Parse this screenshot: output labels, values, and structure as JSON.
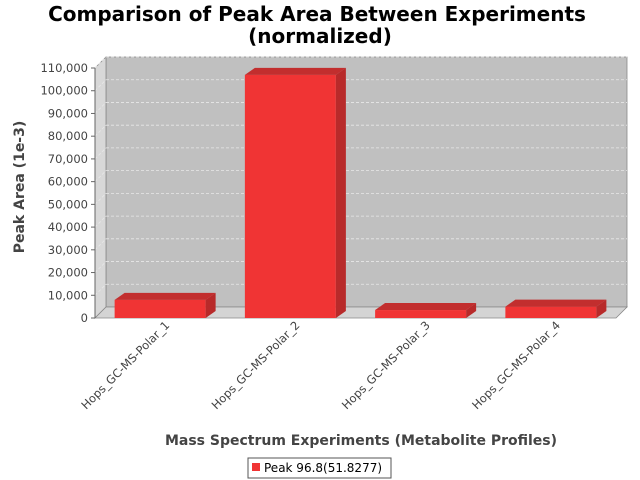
{
  "chart_data": {
    "type": "bar",
    "title_line1": "Comparison of Peak Area Between Experiments",
    "title_line2": "(normalized)",
    "xlabel": "Mass Spectrum Experiments (Metabolite Profiles)",
    "ylabel": "Peak Area (1e-3)",
    "categories": [
      "Hops_GC-MS-Polar_1",
      "Hops_GC-MS-Polar_2",
      "Hops_GC-MS-Polar_3",
      "Hops_GC-MS-Polar_4"
    ],
    "series": [
      {
        "name": "Peak 96.8(51.8277)",
        "values": [
          8000,
          107000,
          3500,
          5000
        ]
      }
    ],
    "ylim": [
      0,
      110000
    ],
    "yticks": [
      0,
      10000,
      20000,
      30000,
      40000,
      50000,
      60000,
      70000,
      80000,
      90000,
      100000,
      110000
    ],
    "ytick_labels": [
      "0",
      "10,000",
      "20,000",
      "30,000",
      "40,000",
      "50,000",
      "60,000",
      "70,000",
      "80,000",
      "90,000",
      "100,000",
      "110,000"
    ],
    "grid": true,
    "legend_position": "bottom",
    "colors": {
      "bar_front": "#f03434",
      "bar_side": "#b82a2a",
      "bar_top": "#c22e2e",
      "plot_bg": "#c0c0c0",
      "wall_left": "#d8d8d8",
      "floor": "#d4d4d4",
      "grid": "#e8e8e8"
    }
  }
}
